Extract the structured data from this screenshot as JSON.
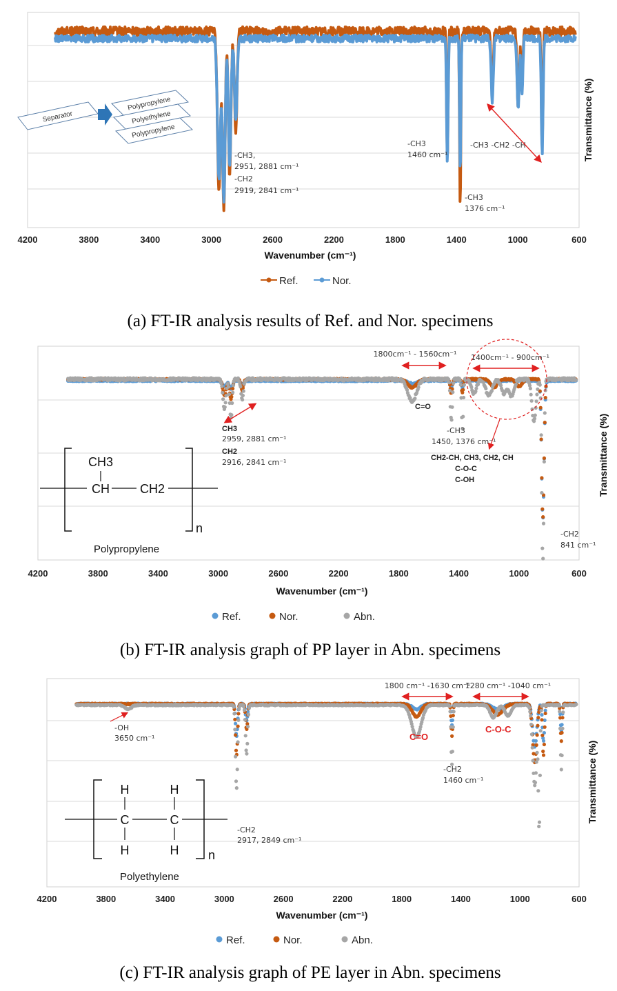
{
  "colors": {
    "ref_a": "#C55A11",
    "nor_a": "#5B9BD5",
    "ref_bc": "#5B9BD5",
    "nor_bc": "#C55A11",
    "abn": "#A6A6A6",
    "annot_red": "#E02020"
  },
  "x_ticks": [
    "4200",
    "3800",
    "3400",
    "3000",
    "2600",
    "2200",
    "1800",
    "1400",
    "1000",
    "600"
  ],
  "panels": [
    {
      "caption": "(a) FT-IR analysis results of Ref. and Nor. specimens",
      "xlabel": "Wavenumber (cm⁻¹)",
      "ylabel": "Transmittance (%)",
      "legend": [
        "Ref.",
        "Nor."
      ],
      "separator": {
        "source": "Separator",
        "layers": [
          "Polypropylene",
          "Polyethylene",
          "Polypropylene"
        ]
      },
      "annotations": {
        "ch3_stretch_group": "-CH3,",
        "ch3_stretch": "2951, 2881 cm⁻¹",
        "ch2_stretch_group": "-CH2",
        "ch2_stretch": "2919, 2841 cm⁻¹",
        "ch3_bend_group": "-CH3",
        "ch3_bend": "1460 cm⁻¹",
        "ch3_sym_group": "-CH3",
        "ch3_sym": "1376 cm⁻¹",
        "fingerprint": "-CH3 -CH2 -CH"
      }
    },
    {
      "caption": "(b) FT-IR analysis graph of PP layer in Abn. specimens",
      "xlabel": "Wavenumber (cm⁻¹)",
      "ylabel": "Transmittance (%)",
      "legend": [
        "Ref.",
        "Nor.",
        "Abn."
      ],
      "polymer": {
        "name": "Polypropylene",
        "top": "CH3",
        "left": "CH",
        "right": "CH2",
        "subscript": "n"
      },
      "annotations": {
        "range1": "1800cm⁻¹ - 1560cm⁻¹",
        "range2": "1400cm⁻¹ - 900cm⁻¹",
        "co": "C=O",
        "ch_group1": "CH3",
        "ch_vals1": "2959, 2881 cm⁻¹",
        "ch_group2": "CH2",
        "ch_vals2": "2916, 2841 cm⁻¹",
        "ch3_group": "-CH3",
        "ch3_vals": "1450, 1376 cm⁻¹",
        "mix1": "CH2-CH, CH3, CH2, CH",
        "mix2": "C-O-C",
        "mix3": "C-OH",
        "ch2_group": "-CH2",
        "ch2_vals": "841 cm⁻¹"
      }
    },
    {
      "caption": "(c) FT-IR analysis graph of PE layer in Abn. specimens",
      "xlabel": "Wavenumber (cm⁻¹)",
      "ylabel": "Transmittance (%)",
      "legend": [
        "Ref.",
        "Nor.",
        "Abn."
      ],
      "polymer": {
        "name": "Polyethylene",
        "h": "H",
        "c": "C",
        "subscript": "n"
      },
      "annotations": {
        "range1": "1800 cm⁻¹ -1630 cm⁻¹",
        "range2": "1280 cm⁻¹ -1040 cm⁻¹",
        "oh_group": "-OH",
        "oh_vals": "3650 cm⁻¹",
        "co": "C=O",
        "coc": "C-O-C",
        "ch2a_group": "-CH2",
        "ch2a_vals": "1460 cm⁻¹",
        "ch2b_group": "-CH2",
        "ch2b_vals": "2917, 2849 cm⁻¹"
      }
    }
  ],
  "chart_data": [
    {
      "type": "line",
      "title": "",
      "xlabel": "Wavenumber (cm⁻¹)",
      "ylabel": "Transmittance (%)",
      "xlim": [
        4200,
        600
      ],
      "x_reversed": true,
      "grid": true,
      "legend_position": "bottom",
      "series": [
        {
          "name": "Ref.",
          "color": "#C55A11",
          "baseline": 96,
          "noise": 5,
          "peaks": [
            [
              2951,
              88,
              14
            ],
            [
              2919,
              100,
              12
            ],
            [
              2881,
              80,
              12
            ],
            [
              2841,
              55,
              12
            ],
            [
              1460,
              72,
              7
            ],
            [
              1376,
              100,
              6
            ],
            [
              1167,
              30,
              10
            ],
            [
              998,
              40,
              10
            ],
            [
              973,
              30,
              8
            ],
            [
              841,
              62,
              8
            ]
          ]
        },
        {
          "name": "Nor.",
          "color": "#5B9BD5",
          "baseline": 92,
          "noise": 4,
          "peaks": [
            [
              2951,
              78,
              14
            ],
            [
              2919,
              92,
              12
            ],
            [
              2881,
              70,
              12
            ],
            [
              2841,
              45,
              12
            ],
            [
              1460,
              68,
              7
            ],
            [
              1376,
              75,
              6
            ],
            [
              1167,
              35,
              10
            ],
            [
              998,
              40,
              10
            ],
            [
              973,
              32,
              8
            ],
            [
              841,
              64,
              8
            ]
          ]
        }
      ]
    },
    {
      "type": "scatter",
      "title": "",
      "xlabel": "Wavenumber (cm⁻¹)",
      "ylabel": "Transmittance (%)",
      "xlim": [
        4200,
        600
      ],
      "x_reversed": true,
      "grid": true,
      "legend_position": "bottom",
      "series": [
        {
          "name": "Ref.",
          "color": "#5B9BD5",
          "baseline": 94,
          "noise": 1,
          "peaks": [
            [
              2959,
              4,
              20
            ],
            [
              2916,
              6,
              14
            ],
            [
              2841,
              3,
              12
            ],
            [
              1710,
              2,
              40
            ],
            [
              1450,
              5,
              10
            ],
            [
              1376,
              5,
              8
            ],
            [
              1167,
              4,
              30
            ],
            [
              841,
              100,
              12
            ]
          ]
        },
        {
          "name": "Nor.",
          "color": "#C55A11",
          "baseline": 95,
          "noise": 1,
          "peaks": [
            [
              2959,
              12,
              16
            ],
            [
              2916,
              14,
              14
            ],
            [
              2841,
              8,
              12
            ],
            [
              1710,
              6,
              40
            ],
            [
              1450,
              10,
              10
            ],
            [
              1376,
              10,
              8
            ],
            [
              1167,
              6,
              30
            ],
            [
              1000,
              5,
              30
            ],
            [
              841,
              100,
              12
            ]
          ]
        },
        {
          "name": "Abn.",
          "color": "#A6A6A6",
          "baseline": 95,
          "noise": 2,
          "peaks": [
            [
              2959,
              22,
              14
            ],
            [
              2916,
              28,
              12
            ],
            [
              2841,
              14,
              12
            ],
            [
              1710,
              16,
              40
            ],
            [
              1450,
              30,
              9
            ],
            [
              1376,
              36,
              8
            ],
            [
              1300,
              10,
              25
            ],
            [
              1200,
              12,
              30
            ],
            [
              1100,
              10,
              25
            ],
            [
              1050,
              12,
              25
            ],
            [
              900,
              30,
              20
            ],
            [
              841,
              135,
              10
            ]
          ]
        }
      ]
    },
    {
      "type": "scatter",
      "title": "",
      "xlabel": "Wavenumber (cm⁻¹)",
      "ylabel": "Transmittance (%)",
      "xlim": [
        4200,
        600
      ],
      "x_reversed": true,
      "grid": true,
      "legend_position": "bottom",
      "series": [
        {
          "name": "Ref.",
          "color": "#5B9BD5",
          "baseline": 95,
          "noise": 1,
          "peaks": [
            [
              2917,
              30,
              10
            ],
            [
              2849,
              16,
              10
            ],
            [
              1700,
              5,
              40
            ],
            [
              1460,
              20,
              8
            ],
            [
              1150,
              5,
              50
            ],
            [
              900,
              40,
              20
            ],
            [
              841,
              35,
              10
            ],
            [
              720,
              25,
              8
            ]
          ]
        },
        {
          "name": "Nor.",
          "color": "#C55A11",
          "baseline": 95,
          "noise": 1,
          "peaks": [
            [
              2917,
              48,
              10
            ],
            [
              2849,
              24,
              10
            ],
            [
              1700,
              12,
              40
            ],
            [
              1460,
              30,
              8
            ],
            [
              1150,
              10,
              50
            ],
            [
              900,
              55,
              20
            ],
            [
              841,
              48,
              10
            ],
            [
              720,
              35,
              8
            ]
          ]
        },
        {
          "name": "Abn.",
          "color": "#A6A6A6",
          "baseline": 94,
          "noise": 1,
          "peaks": [
            [
              3650,
              4,
              30
            ],
            [
              2917,
              78,
              10
            ],
            [
              2849,
              46,
              10
            ],
            [
              1700,
              30,
              45
            ],
            [
              1460,
              56,
              8
            ],
            [
              1180,
              12,
              30
            ],
            [
              1080,
              10,
              30
            ],
            [
              900,
              75,
              20
            ],
            [
              870,
              110,
              8
            ],
            [
              720,
              60,
              8
            ]
          ]
        }
      ]
    }
  ]
}
